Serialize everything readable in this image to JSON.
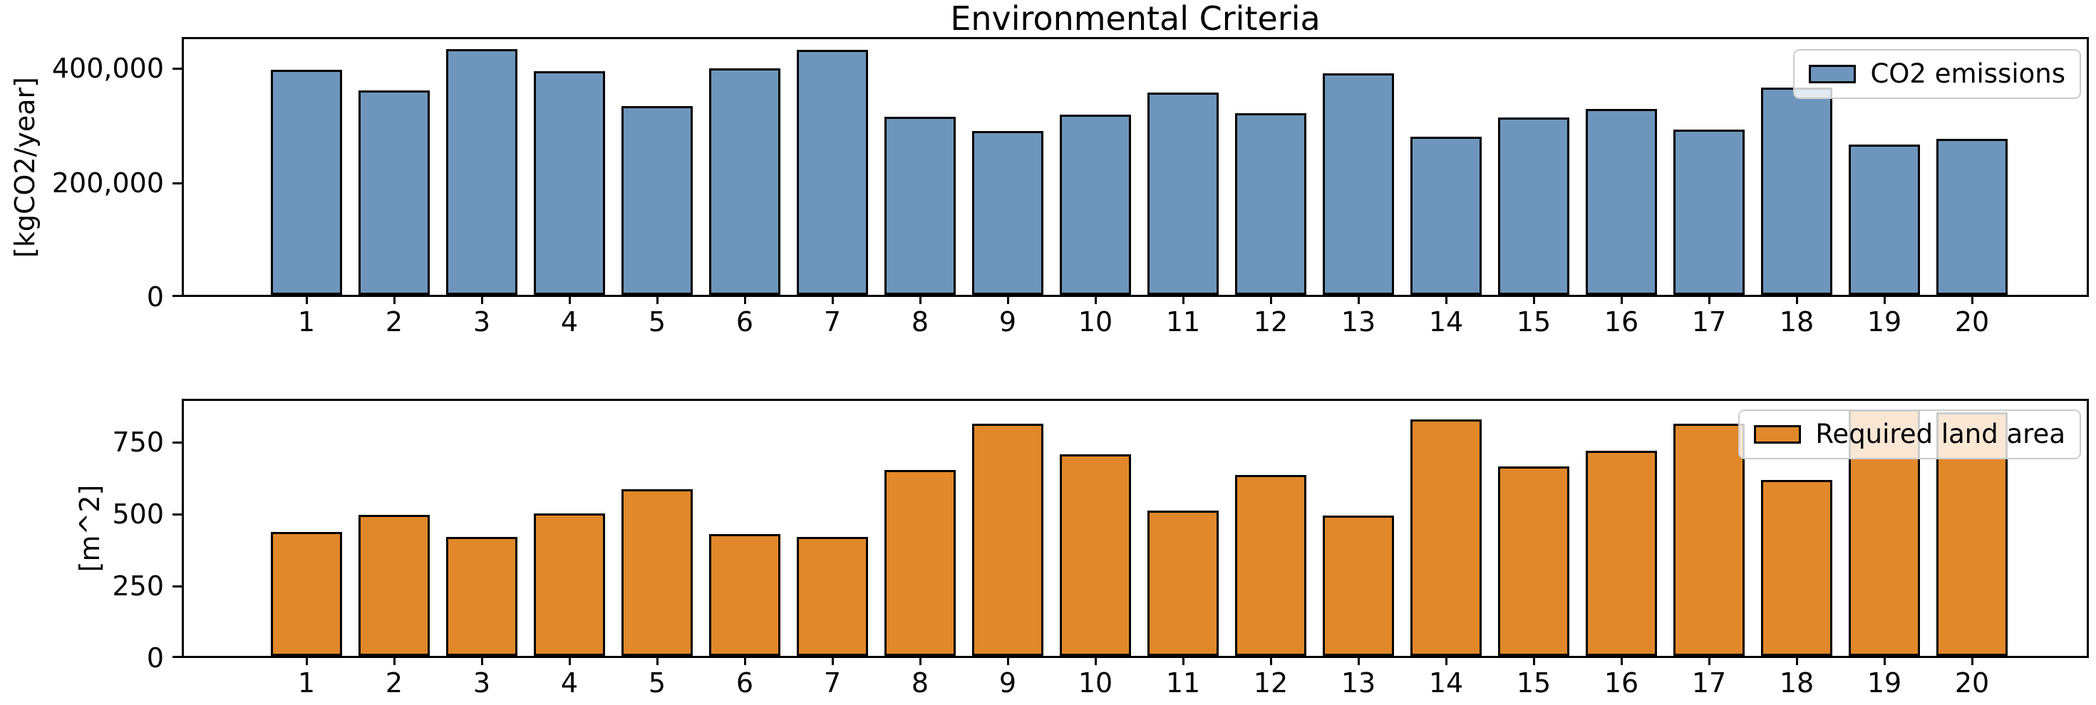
{
  "figure": {
    "background": "#FFFFFF",
    "title": "Environmental Criteria"
  },
  "chart_data": [
    {
      "type": "bar",
      "title": "Environmental Criteria",
      "ylabel": "[kgCO2/year]",
      "xlabel": "",
      "legend_label": "CO2 emissions",
      "legend_position": "upper right",
      "bar_color": "#6E96BC",
      "bar_edge_color": "#000000",
      "grid": false,
      "categories": [
        "1",
        "2",
        "3",
        "4",
        "5",
        "6",
        "7",
        "8",
        "9",
        "10",
        "11",
        "12",
        "13",
        "14",
        "15",
        "16",
        "17",
        "18",
        "19",
        "20"
      ],
      "values": [
        394000,
        358000,
        430000,
        391000,
        330000,
        397000,
        429000,
        312000,
        287000,
        315000,
        354000,
        318000,
        388000,
        277000,
        310000,
        325000,
        289000,
        363000,
        263000,
        273000
      ],
      "ylim": [
        0,
        455000
      ],
      "yticks": {
        "values": [
          0,
          200000,
          400000
        ],
        "labels": [
          "0",
          "200,000",
          "400,000"
        ]
      }
    },
    {
      "type": "bar",
      "title": "",
      "ylabel": "[m^2]",
      "xlabel": "",
      "legend_label": "Required land area",
      "legend_position": "upper right",
      "bar_color": "#E1882B",
      "bar_edge_color": "#000000",
      "grid": false,
      "categories": [
        "1",
        "2",
        "3",
        "4",
        "5",
        "6",
        "7",
        "8",
        "9",
        "10",
        "11",
        "12",
        "13",
        "14",
        "15",
        "16",
        "17",
        "18",
        "19",
        "20"
      ],
      "values": [
        430,
        490,
        413,
        495,
        578,
        423,
        413,
        646,
        806,
        700,
        505,
        629,
        488,
        820,
        658,
        713,
        806,
        610,
        856,
        845
      ],
      "ylim": [
        0,
        900
      ],
      "yticks": {
        "values": [
          0,
          250,
          500,
          750
        ],
        "labels": [
          "0",
          "250",
          "500",
          "750"
        ]
      }
    }
  ]
}
